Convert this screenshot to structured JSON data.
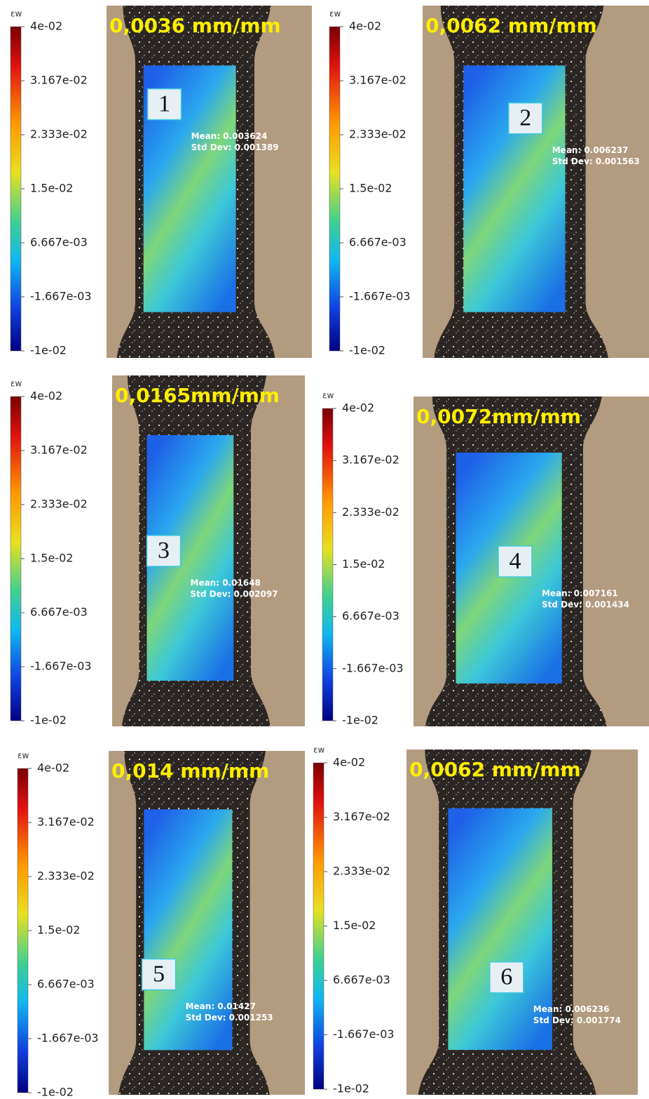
{
  "panels": [
    {
      "colorbar": {
        "label": "εw",
        "ticks": [
          "4e-02",
          "3.167e-02",
          "2.333e-02",
          "1.5e-02",
          "6.667e-03",
          "-1.667e-03",
          "-1e-02"
        ]
      },
      "title": "0,0036 mm/mm",
      "marker": "1",
      "mean": "Mean: 0.003624",
      "std_dev": "Std Dev: 0.001389"
    },
    {
      "colorbar": {
        "label": "εw",
        "ticks": [
          "4e-02",
          "3.167e-02",
          "2.333e-02",
          "1.5e-02",
          "6.667e-03",
          "-1.667e-03",
          "-1e-02"
        ]
      },
      "title": "0,0062 mm/mm",
      "marker": "2",
      "mean": "Mean: 0.006237",
      "std_dev": "Std Dev: 0.001563"
    },
    {
      "colorbar": {
        "label": "εw",
        "ticks": [
          "4e-02",
          "3.167e-02",
          "2.333e-02",
          "1.5e-02",
          "6.667e-03",
          "-1.667e-03",
          "-1e-02"
        ]
      },
      "title": "0,0165mm/mm",
      "marker": "3",
      "mean": "Mean: 0.01648",
      "std_dev": "Std Dev: 0.002097"
    },
    {
      "colorbar": {
        "label": "εw",
        "ticks": [
          "4e-02",
          "3.167e-02",
          "2.333e-02",
          "1.5e-02",
          "6.667e-03",
          "-1.667e-03",
          "-1e-02"
        ]
      },
      "title": "0,0072mm/mm",
      "marker": "4",
      "mean": "Mean: 0.007161",
      "std_dev": "Std Dev: 0.001434"
    },
    {
      "colorbar": {
        "label": "εw",
        "ticks": [
          "4e-02",
          "3.167e-02",
          "2.333e-02",
          "1.5e-02",
          "6.667e-03",
          "-1.667e-03",
          "-1e-02"
        ]
      },
      "title": "0,014 mm/mm",
      "marker": "5",
      "mean": "Mean: 0.01427",
      "std_dev": "Std Dev: 0.001253"
    },
    {
      "colorbar": {
        "label": "εw",
        "ticks": [
          "4e-02",
          "3.167e-02",
          "2.333e-02",
          "1.5e-02",
          "6.667e-03",
          "-1.667e-03",
          "-1e-02"
        ]
      },
      "title": "0,0062 mm/mm",
      "marker": "6",
      "mean": "Mean: 0.006236",
      "std_dev": "Std Dev: 0.001774"
    }
  ]
}
